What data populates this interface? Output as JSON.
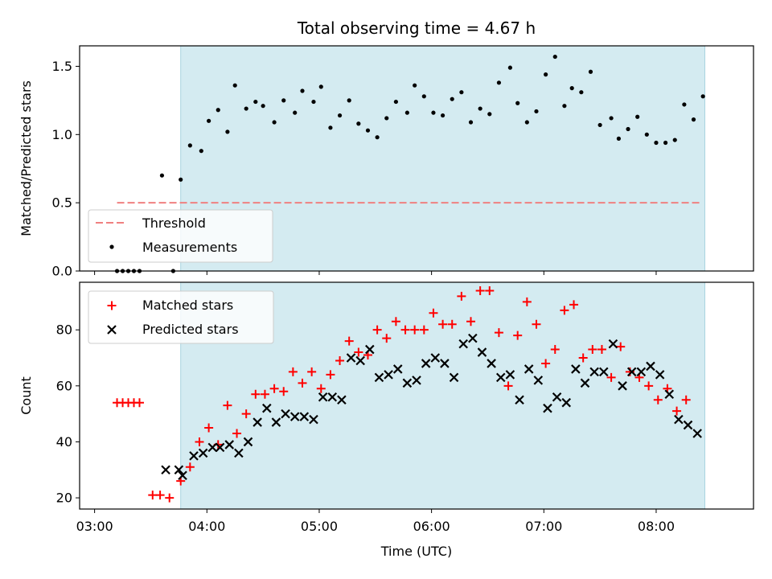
{
  "chart_data": {
    "title": "Total observing time = 4.67 h",
    "xlabel": "Time (UTC)",
    "x_ticks": [
      "03:00",
      "04:00",
      "05:00",
      "06:00",
      "07:00",
      "08:00"
    ],
    "x_range": [
      "02:52",
      "08:52"
    ],
    "observing_window": [
      "03:46",
      "08:26"
    ],
    "colors": {
      "window": "#d4ebf1",
      "window_edge": "#a9d4df",
      "threshold": "#f08080",
      "matched": "#ff0000",
      "predicted": "#000000",
      "measurement": "#000000"
    },
    "panels": [
      {
        "type": "scatter",
        "ylabel": "Matched/Predicted stars",
        "ylim": [
          0,
          1.65
        ],
        "y_ticks": [
          "0.0",
          "0.5",
          "1.0",
          "1.5"
        ],
        "legend": {
          "position": "lower-left",
          "entries": [
            "Threshold",
            "Measurements"
          ]
        },
        "threshold": {
          "name": "Threshold",
          "value": 0.5,
          "x_start": "03:12",
          "x_end": "08:24"
        },
        "series": [
          {
            "name": "Measurements",
            "marker": "dot",
            "points": [
              [
                "03:12",
                0
              ],
              [
                "03:15",
                0
              ],
              [
                "03:18",
                0
              ],
              [
                "03:21",
                0
              ],
              [
                "03:24",
                0
              ],
              [
                "03:36",
                0.7
              ],
              [
                "03:42",
                0
              ],
              [
                "03:46",
                0.67
              ],
              [
                "03:51",
                0.92
              ],
              [
                "03:57",
                0.88
              ],
              [
                "04:01",
                1.1
              ],
              [
                "04:06",
                1.18
              ],
              [
                "04:11",
                1.02
              ],
              [
                "04:15",
                1.36
              ],
              [
                "04:21",
                1.19
              ],
              [
                "04:26",
                1.24
              ],
              [
                "04:30",
                1.21
              ],
              [
                "04:36",
                1.09
              ],
              [
                "04:41",
                1.25
              ],
              [
                "04:47",
                1.16
              ],
              [
                "04:51",
                1.32
              ],
              [
                "04:57",
                1.24
              ],
              [
                "05:01",
                1.35
              ],
              [
                "05:06",
                1.05
              ],
              [
                "05:11",
                1.14
              ],
              [
                "05:16",
                1.25
              ],
              [
                "05:21",
                1.08
              ],
              [
                "05:26",
                1.03
              ],
              [
                "05:31",
                0.98
              ],
              [
                "05:36",
                1.12
              ],
              [
                "05:41",
                1.24
              ],
              [
                "05:47",
                1.16
              ],
              [
                "05:51",
                1.36
              ],
              [
                "05:56",
                1.28
              ],
              [
                "06:01",
                1.16
              ],
              [
                "06:06",
                1.14
              ],
              [
                "06:11",
                1.26
              ],
              [
                "06:16",
                1.31
              ],
              [
                "06:21",
                1.09
              ],
              [
                "06:26",
                1.19
              ],
              [
                "06:31",
                1.15
              ],
              [
                "06:36",
                1.38
              ],
              [
                "06:42",
                1.49
              ],
              [
                "06:46",
                1.23
              ],
              [
                "06:51",
                1.09
              ],
              [
                "06:56",
                1.17
              ],
              [
                "07:01",
                1.44
              ],
              [
                "07:06",
                1.57
              ],
              [
                "07:11",
                1.21
              ],
              [
                "07:15",
                1.34
              ],
              [
                "07:20",
                1.31
              ],
              [
                "07:25",
                1.46
              ],
              [
                "07:30",
                1.07
              ],
              [
                "07:36",
                1.12
              ],
              [
                "07:40",
                0.97
              ],
              [
                "07:45",
                1.04
              ],
              [
                "07:50",
                1.13
              ],
              [
                "07:55",
                1.0
              ],
              [
                "08:00",
                0.94
              ],
              [
                "08:05",
                0.94
              ],
              [
                "08:10",
                0.96
              ],
              [
                "08:15",
                1.22
              ],
              [
                "08:20",
                1.11
              ],
              [
                "08:25",
                1.28
              ]
            ]
          }
        ]
      },
      {
        "type": "scatter",
        "ylabel": "Count",
        "ylim": [
          16,
          97
        ],
        "y_ticks": [
          "20",
          "40",
          "60",
          "80"
        ],
        "legend": {
          "position": "upper-left",
          "entries": [
            "Matched stars",
            "Predicted stars"
          ]
        },
        "series": [
          {
            "name": "Matched stars",
            "marker": "plus",
            "points": [
              [
                "03:12",
                54
              ],
              [
                "03:15",
                54
              ],
              [
                "03:18",
                54
              ],
              [
                "03:21",
                54
              ],
              [
                "03:24",
                54
              ],
              [
                "03:31",
                21
              ],
              [
                "03:35",
                21
              ],
              [
                "03:40",
                20
              ],
              [
                "03:46",
                26
              ],
              [
                "03:51",
                31
              ],
              [
                "03:56",
                40
              ],
              [
                "04:01",
                45
              ],
              [
                "04:06",
                39
              ],
              [
                "04:11",
                53
              ],
              [
                "04:16",
                43
              ],
              [
                "04:21",
                50
              ],
              [
                "04:26",
                57
              ],
              [
                "04:31",
                57
              ],
              [
                "04:36",
                59
              ],
              [
                "04:41",
                58
              ],
              [
                "04:46",
                65
              ],
              [
                "04:51",
                61
              ],
              [
                "04:56",
                65
              ],
              [
                "05:01",
                59
              ],
              [
                "05:06",
                64
              ],
              [
                "05:11",
                69
              ],
              [
                "05:16",
                76
              ],
              [
                "05:21",
                72
              ],
              [
                "05:26",
                71
              ],
              [
                "05:31",
                80
              ],
              [
                "05:36",
                77
              ],
              [
                "05:41",
                83
              ],
              [
                "05:46",
                80
              ],
              [
                "05:51",
                80
              ],
              [
                "05:56",
                80
              ],
              [
                "06:01",
                86
              ],
              [
                "06:06",
                82
              ],
              [
                "06:11",
                82
              ],
              [
                "06:16",
                92
              ],
              [
                "06:21",
                83
              ],
              [
                "06:26",
                94
              ],
              [
                "06:31",
                94
              ],
              [
                "06:36",
                79
              ],
              [
                "06:41",
                60
              ],
              [
                "06:46",
                78
              ],
              [
                "06:51",
                90
              ],
              [
                "06:56",
                82
              ],
              [
                "07:01",
                68
              ],
              [
                "07:06",
                73
              ],
              [
                "07:11",
                87
              ],
              [
                "07:16",
                89
              ],
              [
                "07:21",
                70
              ],
              [
                "07:26",
                73
              ],
              [
                "07:31",
                73
              ],
              [
                "07:36",
                63
              ],
              [
                "07:41",
                74
              ],
              [
                "07:46",
                65
              ],
              [
                "07:51",
                63
              ],
              [
                "07:56",
                60
              ],
              [
                "08:01",
                55
              ],
              [
                "08:06",
                59
              ],
              [
                "08:11",
                51
              ],
              [
                "08:16",
                55
              ]
            ]
          },
          {
            "name": "Predicted stars",
            "marker": "x",
            "points": [
              [
                "03:38",
                30
              ],
              [
                "03:45",
                30
              ],
              [
                "03:47",
                28
              ],
              [
                "03:53",
                35
              ],
              [
                "03:58",
                36
              ],
              [
                "04:03",
                38
              ],
              [
                "04:07",
                38
              ],
              [
                "04:12",
                39
              ],
              [
                "04:17",
                36
              ],
              [
                "04:22",
                40
              ],
              [
                "04:27",
                47
              ],
              [
                "04:32",
                52
              ],
              [
                "04:37",
                47
              ],
              [
                "04:42",
                50
              ],
              [
                "04:47",
                49
              ],
              [
                "04:52",
                49
              ],
              [
                "04:57",
                48
              ],
              [
                "05:02",
                56
              ],
              [
                "05:07",
                56
              ],
              [
                "05:12",
                55
              ],
              [
                "05:17",
                70
              ],
              [
                "05:22",
                69
              ],
              [
                "05:27",
                73
              ],
              [
                "05:32",
                63
              ],
              [
                "05:37",
                64
              ],
              [
                "05:42",
                66
              ],
              [
                "05:47",
                61
              ],
              [
                "05:52",
                62
              ],
              [
                "05:57",
                68
              ],
              [
                "06:02",
                70
              ],
              [
                "06:07",
                68
              ],
              [
                "06:12",
                63
              ],
              [
                "06:17",
                75
              ],
              [
                "06:22",
                77
              ],
              [
                "06:27",
                72
              ],
              [
                "06:32",
                68
              ],
              [
                "06:37",
                63
              ],
              [
                "06:42",
                64
              ],
              [
                "06:47",
                55
              ],
              [
                "06:52",
                66
              ],
              [
                "06:57",
                62
              ],
              [
                "07:02",
                52
              ],
              [
                "07:07",
                56
              ],
              [
                "07:12",
                54
              ],
              [
                "07:17",
                66
              ],
              [
                "07:22",
                61
              ],
              [
                "07:27",
                65
              ],
              [
                "07:32",
                65
              ],
              [
                "07:37",
                75
              ],
              [
                "07:42",
                60
              ],
              [
                "07:47",
                65
              ],
              [
                "07:52",
                65
              ],
              [
                "07:57",
                67
              ],
              [
                "08:02",
                64
              ],
              [
                "08:07",
                57
              ],
              [
                "08:12",
                48
              ],
              [
                "08:17",
                46
              ],
              [
                "08:22",
                43
              ]
            ]
          }
        ]
      }
    ]
  }
}
